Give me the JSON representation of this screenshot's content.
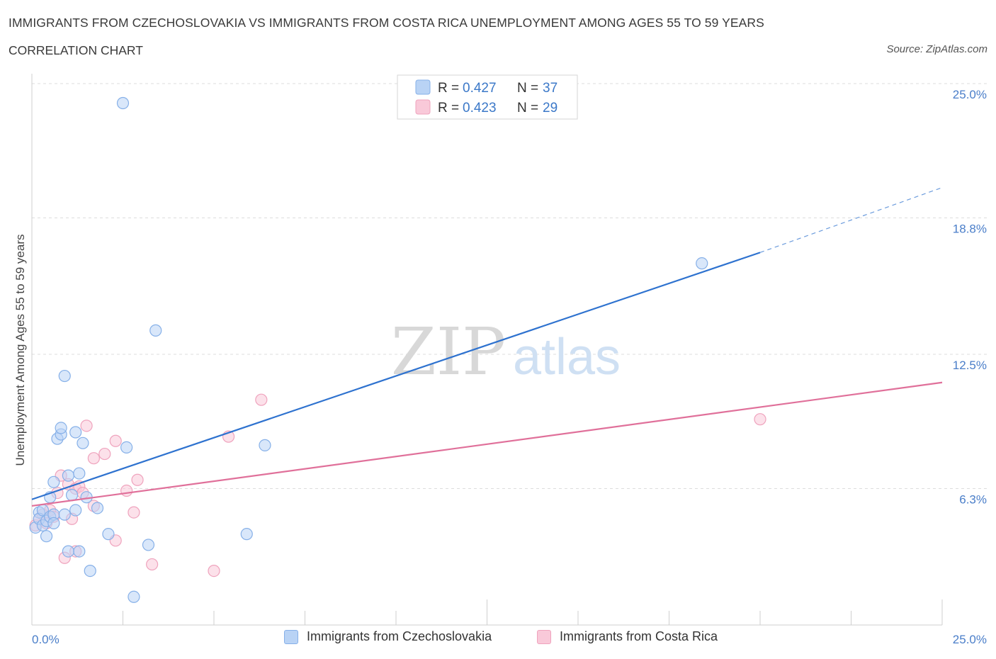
{
  "title": "IMMIGRANTS FROM CZECHOSLOVAKIA VS IMMIGRANTS FROM COSTA RICA UNEMPLOYMENT AMONG AGES 55 TO 59 YEARS",
  "subtitle": "CORRELATION CHART",
  "source": "Source: ZipAtlas.com",
  "watermark": {
    "zip": "ZIP",
    "atlas": "atlas"
  },
  "colors": {
    "blue_fill": "#b9d3f5",
    "blue_stroke": "#86b0e8",
    "blue_line": "#2e72cf",
    "pink_fill": "#f9c9d9",
    "pink_stroke": "#efa3bd",
    "pink_line": "#e0709a",
    "grid": "#dcdcdc",
    "tick_text": "#4a7ec9"
  },
  "legend": {
    "rows": [
      {
        "r_label": "R = ",
        "r_value": "0.427",
        "n_label": "N = ",
        "n_value": "37"
      },
      {
        "r_label": "R = ",
        "r_value": "0.423",
        "n_label": "N = ",
        "n_value": "29"
      }
    ]
  },
  "bottom_legend": [
    "Immigrants from Czechoslovakia",
    "Immigrants from Costa Rica"
  ],
  "chart_data": {
    "type": "scatter",
    "title": "IMMIGRANTS FROM CZECHOSLOVAKIA VS IMMIGRANTS FROM COSTA RICA UNEMPLOYMENT AMONG AGES 55 TO 59 YEARS",
    "xlabel": "",
    "ylabel": "Unemployment Among Ages 55 to 59 years",
    "xlim": [
      0,
      25
    ],
    "ylim": [
      0,
      25
    ],
    "x_tick_labels": [
      "0.0%",
      "25.0%"
    ],
    "y_ticks": [
      {
        "value": 25.0,
        "label": "25.0%"
      },
      {
        "value": 18.8,
        "label": "18.8%"
      },
      {
        "value": 12.5,
        "label": "12.5%"
      },
      {
        "value": 6.3,
        "label": "6.3%"
      }
    ],
    "series": [
      {
        "name": "Immigrants from Czechoslovakia",
        "R": 0.427,
        "N": 37,
        "trend": {
          "x0": 0,
          "y0": 5.8,
          "x1": 20,
          "y1": 17.2,
          "dashed_to_x": 25,
          "dashed_to_y": 20.2
        },
        "points": [
          [
            0.1,
            4.5
          ],
          [
            0.2,
            5.2
          ],
          [
            0.2,
            4.9
          ],
          [
            0.3,
            4.6
          ],
          [
            0.3,
            5.3
          ],
          [
            0.4,
            4.1
          ],
          [
            0.4,
            4.8
          ],
          [
            0.5,
            5.0
          ],
          [
            0.5,
            5.9
          ],
          [
            0.6,
            6.6
          ],
          [
            0.6,
            5.1
          ],
          [
            0.6,
            4.7
          ],
          [
            0.7,
            8.6
          ],
          [
            0.8,
            8.8
          ],
          [
            0.8,
            9.1
          ],
          [
            0.9,
            11.5
          ],
          [
            0.9,
            5.1
          ],
          [
            1.0,
            3.4
          ],
          [
            1.0,
            6.9
          ],
          [
            1.1,
            6.0
          ],
          [
            1.2,
            5.3
          ],
          [
            1.2,
            8.9
          ],
          [
            1.3,
            7.0
          ],
          [
            1.3,
            3.4
          ],
          [
            1.4,
            8.4
          ],
          [
            1.5,
            5.9
          ],
          [
            1.6,
            2.5
          ],
          [
            1.8,
            5.4
          ],
          [
            2.1,
            4.2
          ],
          [
            2.5,
            24.1
          ],
          [
            2.6,
            8.2
          ],
          [
            2.8,
            1.3
          ],
          [
            3.2,
            3.7
          ],
          [
            3.4,
            13.6
          ],
          [
            5.9,
            4.2
          ],
          [
            6.4,
            8.3
          ],
          [
            18.4,
            16.7
          ]
        ]
      },
      {
        "name": "Immigrants from Costa Rica",
        "R": 0.423,
        "N": 29,
        "trend": {
          "x0": 0,
          "y0": 5.5,
          "x1": 25,
          "y1": 11.2
        },
        "points": [
          [
            0.1,
            4.6
          ],
          [
            0.2,
            4.9
          ],
          [
            0.3,
            5.1
          ],
          [
            0.4,
            4.7
          ],
          [
            0.5,
            5.3
          ],
          [
            0.6,
            5.0
          ],
          [
            0.7,
            6.1
          ],
          [
            0.8,
            6.9
          ],
          [
            0.9,
            3.1
          ],
          [
            1.0,
            6.5
          ],
          [
            1.1,
            4.9
          ],
          [
            1.2,
            3.4
          ],
          [
            1.2,
            6.3
          ],
          [
            1.3,
            6.4
          ],
          [
            1.4,
            6.1
          ],
          [
            1.5,
            9.2
          ],
          [
            1.7,
            5.5
          ],
          [
            1.7,
            7.7
          ],
          [
            2.0,
            7.9
          ],
          [
            2.3,
            3.9
          ],
          [
            2.3,
            8.5
          ],
          [
            2.6,
            6.2
          ],
          [
            2.8,
            5.2
          ],
          [
            2.9,
            6.7
          ],
          [
            3.3,
            2.8
          ],
          [
            5.0,
            2.5
          ],
          [
            5.4,
            8.7
          ],
          [
            6.3,
            10.4
          ],
          [
            20.0,
            9.5
          ]
        ]
      }
    ]
  }
}
